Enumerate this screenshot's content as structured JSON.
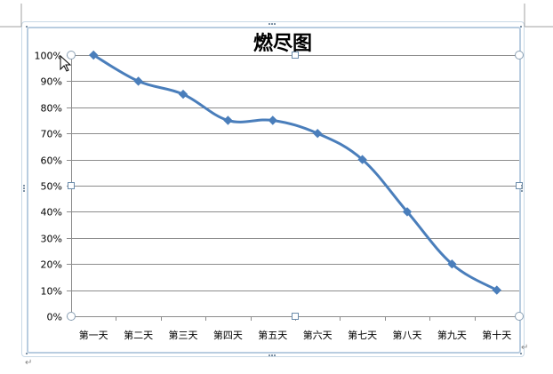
{
  "chart_data": {
    "type": "line",
    "title": "燃尽图",
    "categories": [
      "第一天",
      "第二天",
      "第三天",
      "第四天",
      "第五天",
      "第六天",
      "第七天",
      "第八天",
      "第九天",
      "第十天"
    ],
    "series": [
      {
        "values": [
          100,
          90,
          85,
          75,
          75,
          70,
          60,
          40,
          20,
          10
        ]
      }
    ],
    "y_tick_labels": [
      "100%",
      "90%",
      "80%",
      "70%",
      "60%",
      "50%",
      "40%",
      "30%",
      "20%",
      "10%",
      "0%"
    ],
    "ylim": [
      0,
      100
    ],
    "grid": true,
    "legend": "none",
    "colors": {
      "line": "#4a7ebb",
      "grid": "#8c8c8c",
      "frame": "#b9cde0"
    }
  },
  "document": {
    "paragraph_mark_1": "↵",
    "paragraph_mark_2": "↵"
  }
}
